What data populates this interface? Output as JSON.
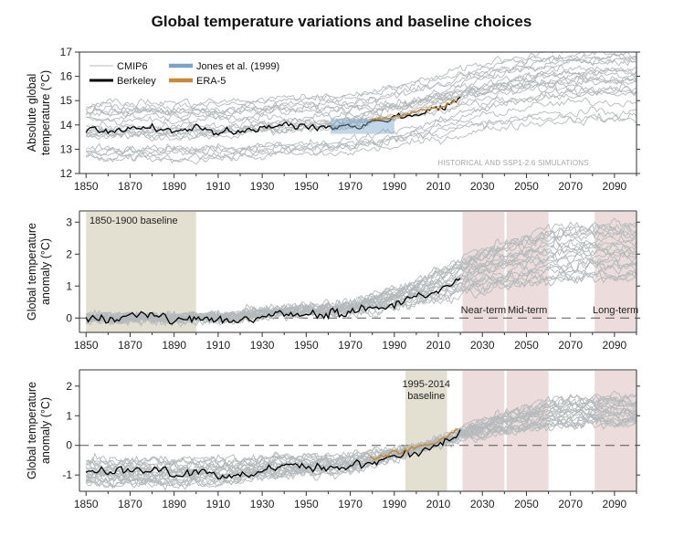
{
  "title": "Global temperature variations and baseline choices",
  "colors": {
    "cmip6": "#b4b9bb",
    "berkeley": "#000000",
    "jones": "#7aa3c8",
    "era5": "#c68a3a",
    "baseline_shade": "#e3e0d2",
    "period_shade": "#ecdcdc"
  },
  "chart_data": [
    {
      "type": "line",
      "ylabel": "Absolute global temperature (°C)",
      "xlim": [
        1847,
        2100
      ],
      "ylim": [
        12,
        17
      ],
      "x_ticks": [
        1850,
        1870,
        1890,
        1910,
        1930,
        1950,
        1970,
        1990,
        2010,
        2030,
        2050,
        2070,
        2090
      ],
      "y_ticks": [
        12,
        13,
        14,
        15,
        16,
        17
      ],
      "note": "HISTORICAL AND SSP1-2.6 SIMULATIONS",
      "legend": [
        {
          "name": "CMIP6",
          "key": "cmip6"
        },
        {
          "name": "Berkeley",
          "key": "berkeley"
        },
        {
          "name": "Jones et al. (1999)",
          "key": "jones"
        },
        {
          "name": "ERA-5",
          "key": "era5"
        }
      ],
      "legend_position": "top-left",
      "series": [
        {
          "name": "CMIP6",
          "model_count": 22,
          "start": 1850,
          "end": 2100
        },
        {
          "name": "Berkeley",
          "x": [
            1850,
            1860,
            1870,
            1880,
            1890,
            1900,
            1910,
            1920,
            1930,
            1940,
            1950,
            1960,
            1970,
            1980,
            1990,
            2000,
            2010,
            2020
          ],
          "y": [
            13.82,
            13.75,
            13.85,
            13.9,
            13.72,
            13.83,
            13.7,
            13.76,
            13.84,
            14.0,
            13.92,
            13.98,
            13.96,
            14.15,
            14.3,
            14.45,
            14.7,
            15.1
          ]
        },
        {
          "name": "Jones et al. (1999)",
          "x": [
            1961,
            1990
          ],
          "y": [
            13.95,
            13.95
          ],
          "band": 0.32
        },
        {
          "name": "ERA-5",
          "x": [
            1979,
            1985,
            1990,
            1995,
            2000,
            2005,
            2010,
            2015,
            2019
          ],
          "y": [
            14.2,
            14.22,
            14.32,
            14.42,
            14.5,
            14.62,
            14.7,
            14.92,
            15.05
          ]
        }
      ]
    },
    {
      "type": "line",
      "ylabel": "Global temperature anomaly  (°C)",
      "xlim": [
        1847,
        2100
      ],
      "ylim": [
        -0.45,
        3.35
      ],
      "x_ticks": [
        1850,
        1870,
        1890,
        1910,
        1930,
        1950,
        1970,
        1990,
        2010,
        2030,
        2050,
        2070,
        2090
      ],
      "y_ticks": [
        0,
        1,
        2,
        3
      ],
      "baseline": {
        "label": "1850-1900 baseline",
        "start": 1850,
        "end": 1900
      },
      "periods": [
        {
          "label": "Near-term",
          "start": 2021,
          "end": 2040
        },
        {
          "label": "Mid-term",
          "start": 2041,
          "end": 2060
        },
        {
          "label": "Long-term",
          "start": 2081,
          "end": 2100
        }
      ],
      "zero_line": true,
      "series": [
        {
          "name": "CMIP6",
          "model_count": 22,
          "start": 1850,
          "end": 2100
        },
        {
          "name": "Berkeley",
          "x": [
            1850,
            1860,
            1870,
            1880,
            1890,
            1900,
            1910,
            1920,
            1930,
            1940,
            1950,
            1960,
            1970,
            1980,
            1990,
            2000,
            2010,
            2020
          ],
          "y": [
            0.0,
            -0.07,
            0.03,
            0.08,
            -0.1,
            0.01,
            -0.12,
            -0.06,
            0.02,
            0.18,
            0.1,
            0.16,
            0.14,
            0.33,
            0.48,
            0.63,
            0.88,
            1.28
          ]
        }
      ]
    },
    {
      "type": "line",
      "ylabel": "Global temperature anomaly  (°C)",
      "xlim": [
        1847,
        2100
      ],
      "ylim": [
        -1.55,
        2.55
      ],
      "x_ticks": [
        1850,
        1870,
        1890,
        1910,
        1930,
        1950,
        1970,
        1990,
        2010,
        2030,
        2050,
        2070,
        2090
      ],
      "y_ticks": [
        -1,
        0,
        1,
        2
      ],
      "baseline": {
        "label_lines": [
          "1995-2014",
          "baseline"
        ],
        "start": 1995,
        "end": 2014
      },
      "periods": [
        {
          "label": "",
          "start": 2021,
          "end": 2040
        },
        {
          "label": "",
          "start": 2041,
          "end": 2060
        },
        {
          "label": "",
          "start": 2081,
          "end": 2100
        }
      ],
      "zero_line": true,
      "series": [
        {
          "name": "CMIP6",
          "model_count": 22,
          "start": 1850,
          "end": 2100
        },
        {
          "name": "Berkeley",
          "x": [
            1850,
            1860,
            1870,
            1880,
            1890,
            1900,
            1910,
            1920,
            1930,
            1940,
            1950,
            1960,
            1970,
            1980,
            1990,
            2000,
            2010,
            2020
          ],
          "y": [
            -0.88,
            -0.95,
            -0.85,
            -0.8,
            -0.98,
            -0.87,
            -1.0,
            -0.94,
            -0.86,
            -0.7,
            -0.78,
            -0.72,
            -0.74,
            -0.55,
            -0.4,
            -0.25,
            0.0,
            0.4
          ]
        },
        {
          "name": "ERA-5",
          "x": [
            1979,
            1985,
            1990,
            1995,
            2000,
            2005,
            2010,
            2015,
            2019
          ],
          "y": [
            -0.37,
            -0.35,
            -0.25,
            -0.15,
            -0.07,
            0.05,
            0.13,
            0.35,
            0.48
          ]
        }
      ]
    }
  ]
}
